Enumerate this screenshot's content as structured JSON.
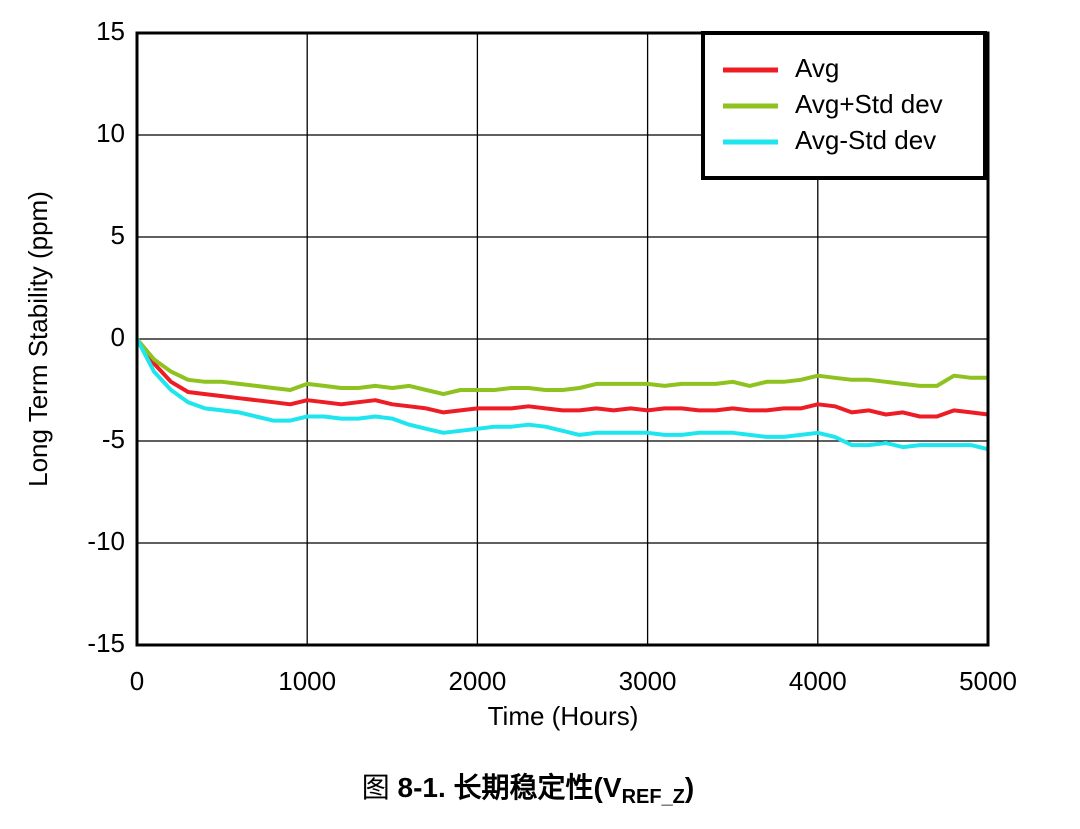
{
  "chart_data": {
    "type": "line",
    "caption": [
      "图 ",
      "8-1. 长期稳定性(V",
      "REF_Z",
      ")"
    ],
    "xlabel": "Time (Hours)",
    "ylabel": "Long Term Stability (ppm)",
    "x": [
      0,
      100,
      200,
      300,
      400,
      500,
      600,
      700,
      800,
      900,
      1000,
      1100,
      1200,
      1300,
      1400,
      1500,
      1600,
      1700,
      1800,
      1900,
      2000,
      2100,
      2200,
      2300,
      2400,
      2500,
      2600,
      2700,
      2800,
      2900,
      3000,
      3100,
      3200,
      3300,
      3400,
      3500,
      3600,
      3700,
      3800,
      3900,
      4000,
      4100,
      4200,
      4300,
      4400,
      4500,
      4600,
      4700,
      4800,
      4900,
      5000
    ],
    "series": [
      {
        "name": "Avg",
        "color": "#ee1c25",
        "values": [
          0,
          -1.2,
          -2.1,
          -2.6,
          -2.7,
          -2.8,
          -2.9,
          -3.0,
          -3.1,
          -3.2,
          -3.0,
          -3.1,
          -3.2,
          -3.1,
          -3.0,
          -3.2,
          -3.3,
          -3.4,
          -3.6,
          -3.5,
          -3.4,
          -3.4,
          -3.4,
          -3.3,
          -3.4,
          -3.5,
          -3.5,
          -3.4,
          -3.5,
          -3.4,
          -3.5,
          -3.4,
          -3.4,
          -3.5,
          -3.5,
          -3.4,
          -3.5,
          -3.5,
          -3.4,
          -3.4,
          -3.2,
          -3.3,
          -3.6,
          -3.5,
          -3.7,
          -3.6,
          -3.8,
          -3.8,
          -3.5,
          -3.6,
          -3.7
        ]
      },
      {
        "name": "Avg+Std dev",
        "color": "#8dc21f",
        "values": [
          0,
          -1.0,
          -1.6,
          -2.0,
          -2.1,
          -2.1,
          -2.2,
          -2.3,
          -2.4,
          -2.5,
          -2.2,
          -2.3,
          -2.4,
          -2.4,
          -2.3,
          -2.4,
          -2.3,
          -2.5,
          -2.7,
          -2.5,
          -2.5,
          -2.5,
          -2.4,
          -2.4,
          -2.5,
          -2.5,
          -2.4,
          -2.2,
          -2.2,
          -2.2,
          -2.2,
          -2.3,
          -2.2,
          -2.2,
          -2.2,
          -2.1,
          -2.3,
          -2.1,
          -2.1,
          -2.0,
          -1.8,
          -1.9,
          -2.0,
          -2.0,
          -2.1,
          -2.2,
          -2.3,
          -2.3,
          -1.8,
          -1.9,
          -1.9
        ]
      },
      {
        "name": "Avg-Std dev",
        "color": "#1fe5ee",
        "values": [
          0,
          -1.6,
          -2.5,
          -3.1,
          -3.4,
          -3.5,
          -3.6,
          -3.8,
          -4.0,
          -4.0,
          -3.8,
          -3.8,
          -3.9,
          -3.9,
          -3.8,
          -3.9,
          -4.2,
          -4.4,
          -4.6,
          -4.5,
          -4.4,
          -4.3,
          -4.3,
          -4.2,
          -4.3,
          -4.5,
          -4.7,
          -4.6,
          -4.6,
          -4.6,
          -4.6,
          -4.7,
          -4.7,
          -4.6,
          -4.6,
          -4.6,
          -4.7,
          -4.8,
          -4.8,
          -4.7,
          -4.6,
          -4.8,
          -5.2,
          -5.2,
          -5.1,
          -5.3,
          -5.2,
          -5.2,
          -5.2,
          -5.2,
          -5.4
        ]
      }
    ],
    "xlim": [
      0,
      5000
    ],
    "xticks": [
      0,
      1000,
      2000,
      3000,
      4000,
      5000
    ],
    "ylim": [
      -15,
      15
    ],
    "yticks": [
      -15,
      -10,
      -5,
      0,
      5,
      10,
      15
    ],
    "grid": true,
    "legend": "upper right"
  }
}
